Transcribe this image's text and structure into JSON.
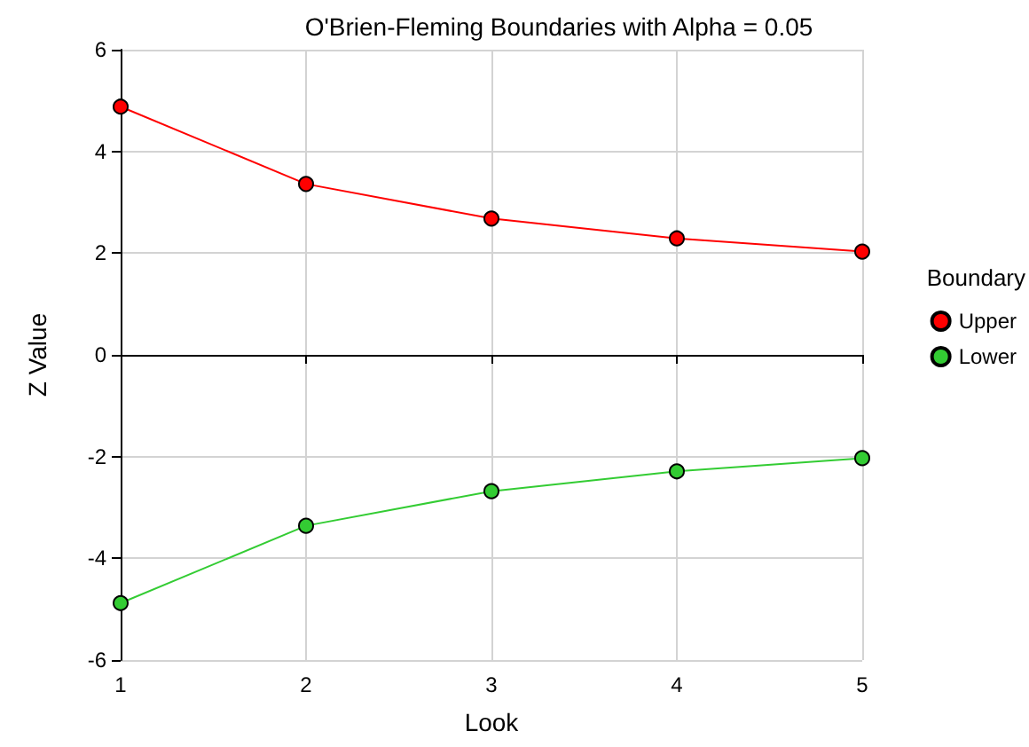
{
  "chart_data": {
    "type": "line",
    "title": "O'Brien-Fleming Boundaries with Alpha = 0.05",
    "xlabel": "Look",
    "ylabel": "Z Value",
    "legend_title": "Boundary",
    "x": [
      1,
      2,
      3,
      4,
      5
    ],
    "series": [
      {
        "name": "Upper",
        "color": "#ff0000",
        "values": [
          4.88,
          3.36,
          2.68,
          2.29,
          2.03
        ]
      },
      {
        "name": "Lower",
        "color": "#33cc33",
        "values": [
          -4.88,
          -3.36,
          -2.68,
          -2.29,
          -2.03
        ]
      }
    ],
    "xlim": [
      1,
      5
    ],
    "xticks": [
      1,
      2,
      3,
      4,
      5
    ],
    "ylim": [
      -6,
      6
    ],
    "yticks": [
      -6,
      -4,
      -2,
      0,
      2,
      4,
      6
    ],
    "grid": true,
    "legend": "right",
    "marker": "circle",
    "line_style": "solid"
  }
}
